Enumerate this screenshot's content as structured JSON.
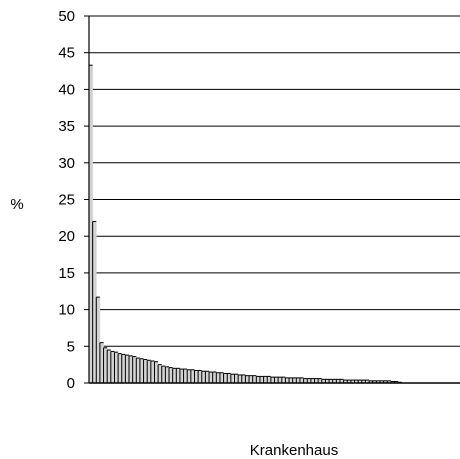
{
  "chart_data": {
    "type": "bar",
    "title": "",
    "xlabel": "Krankenhaus",
    "ylabel": "%",
    "ylim": [
      0,
      50
    ],
    "yticks": [
      0,
      5,
      10,
      15,
      20,
      25,
      30,
      35,
      40,
      45,
      50
    ],
    "grid": true,
    "legend": "none",
    "bar_color": "#d3d3d3",
    "edge_color": "#000000",
    "categories_count": 86,
    "unlabeled_bar_slots": 16,
    "values": [
      43.3,
      22.0,
      11.7,
      5.5,
      4.8,
      4.5,
      4.3,
      4.2,
      4.0,
      3.9,
      3.8,
      3.7,
      3.6,
      3.4,
      3.3,
      3.2,
      3.1,
      3.0,
      2.9,
      2.5,
      2.3,
      2.2,
      2.1,
      2.0,
      2.0,
      1.9,
      1.9,
      1.8,
      1.8,
      1.7,
      1.7,
      1.6,
      1.6,
      1.5,
      1.5,
      1.4,
      1.4,
      1.3,
      1.3,
      1.2,
      1.2,
      1.1,
      1.1,
      1.0,
      1.0,
      1.0,
      0.9,
      0.9,
      0.9,
      0.9,
      0.8,
      0.8,
      0.8,
      0.8,
      0.7,
      0.7,
      0.7,
      0.7,
      0.7,
      0.6,
      0.6,
      0.6,
      0.6,
      0.6,
      0.5,
      0.5,
      0.5,
      0.5,
      0.5,
      0.5,
      0.4,
      0.4,
      0.4,
      0.4,
      0.4,
      0.4,
      0.4,
      0.3,
      0.3,
      0.3,
      0.3,
      0.3,
      0.3,
      0.2,
      0.2,
      0.1
    ]
  }
}
